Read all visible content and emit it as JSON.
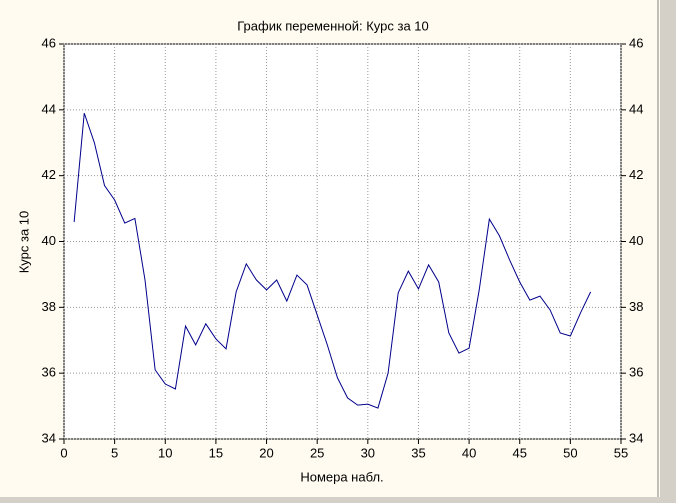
{
  "chart_data": {
    "type": "line",
    "title": "График переменной: Курс за 10",
    "x_label": "Номера набл.",
    "y_label": "Курс за 10",
    "x": [
      1,
      2,
      3,
      4,
      5,
      6,
      7,
      8,
      9,
      10,
      11,
      12,
      13,
      14,
      15,
      16,
      17,
      18,
      19,
      20,
      21,
      22,
      23,
      24,
      25,
      26,
      27,
      28,
      29,
      30,
      31,
      32,
      33,
      34,
      35,
      36,
      37,
      38,
      39,
      40,
      41,
      42,
      43,
      44,
      45,
      46,
      47,
      48,
      49,
      50,
      51,
      52
    ],
    "series": [
      {
        "name": "Курс за 10",
        "color": "#00008b",
        "values": [
          40.59,
          43.9,
          43.0,
          41.7,
          41.26,
          40.56,
          40.7,
          38.83,
          36.1,
          35.67,
          35.52,
          37.43,
          36.86,
          37.5,
          37.04,
          36.74,
          38.47,
          39.32,
          38.83,
          38.53,
          38.83,
          38.19,
          38.98,
          38.68,
          37.77,
          36.86,
          35.86,
          35.25,
          35.03,
          35.06,
          34.94,
          36.0,
          38.44,
          39.1,
          38.56,
          39.29,
          38.77,
          37.22,
          36.61,
          36.76,
          38.53,
          40.68,
          40.17,
          39.44,
          38.77,
          38.22,
          38.34,
          37.92,
          37.22,
          37.13,
          37.83,
          38.47
        ]
      }
    ],
    "xlim": [
      0,
      55
    ],
    "xticks": [
      0,
      5,
      10,
      15,
      20,
      25,
      30,
      35,
      40,
      45,
      50,
      55
    ],
    "ylim": [
      34,
      46
    ],
    "yticks": [
      34,
      36,
      38,
      40,
      42,
      44,
      46
    ],
    "grid": true
  }
}
